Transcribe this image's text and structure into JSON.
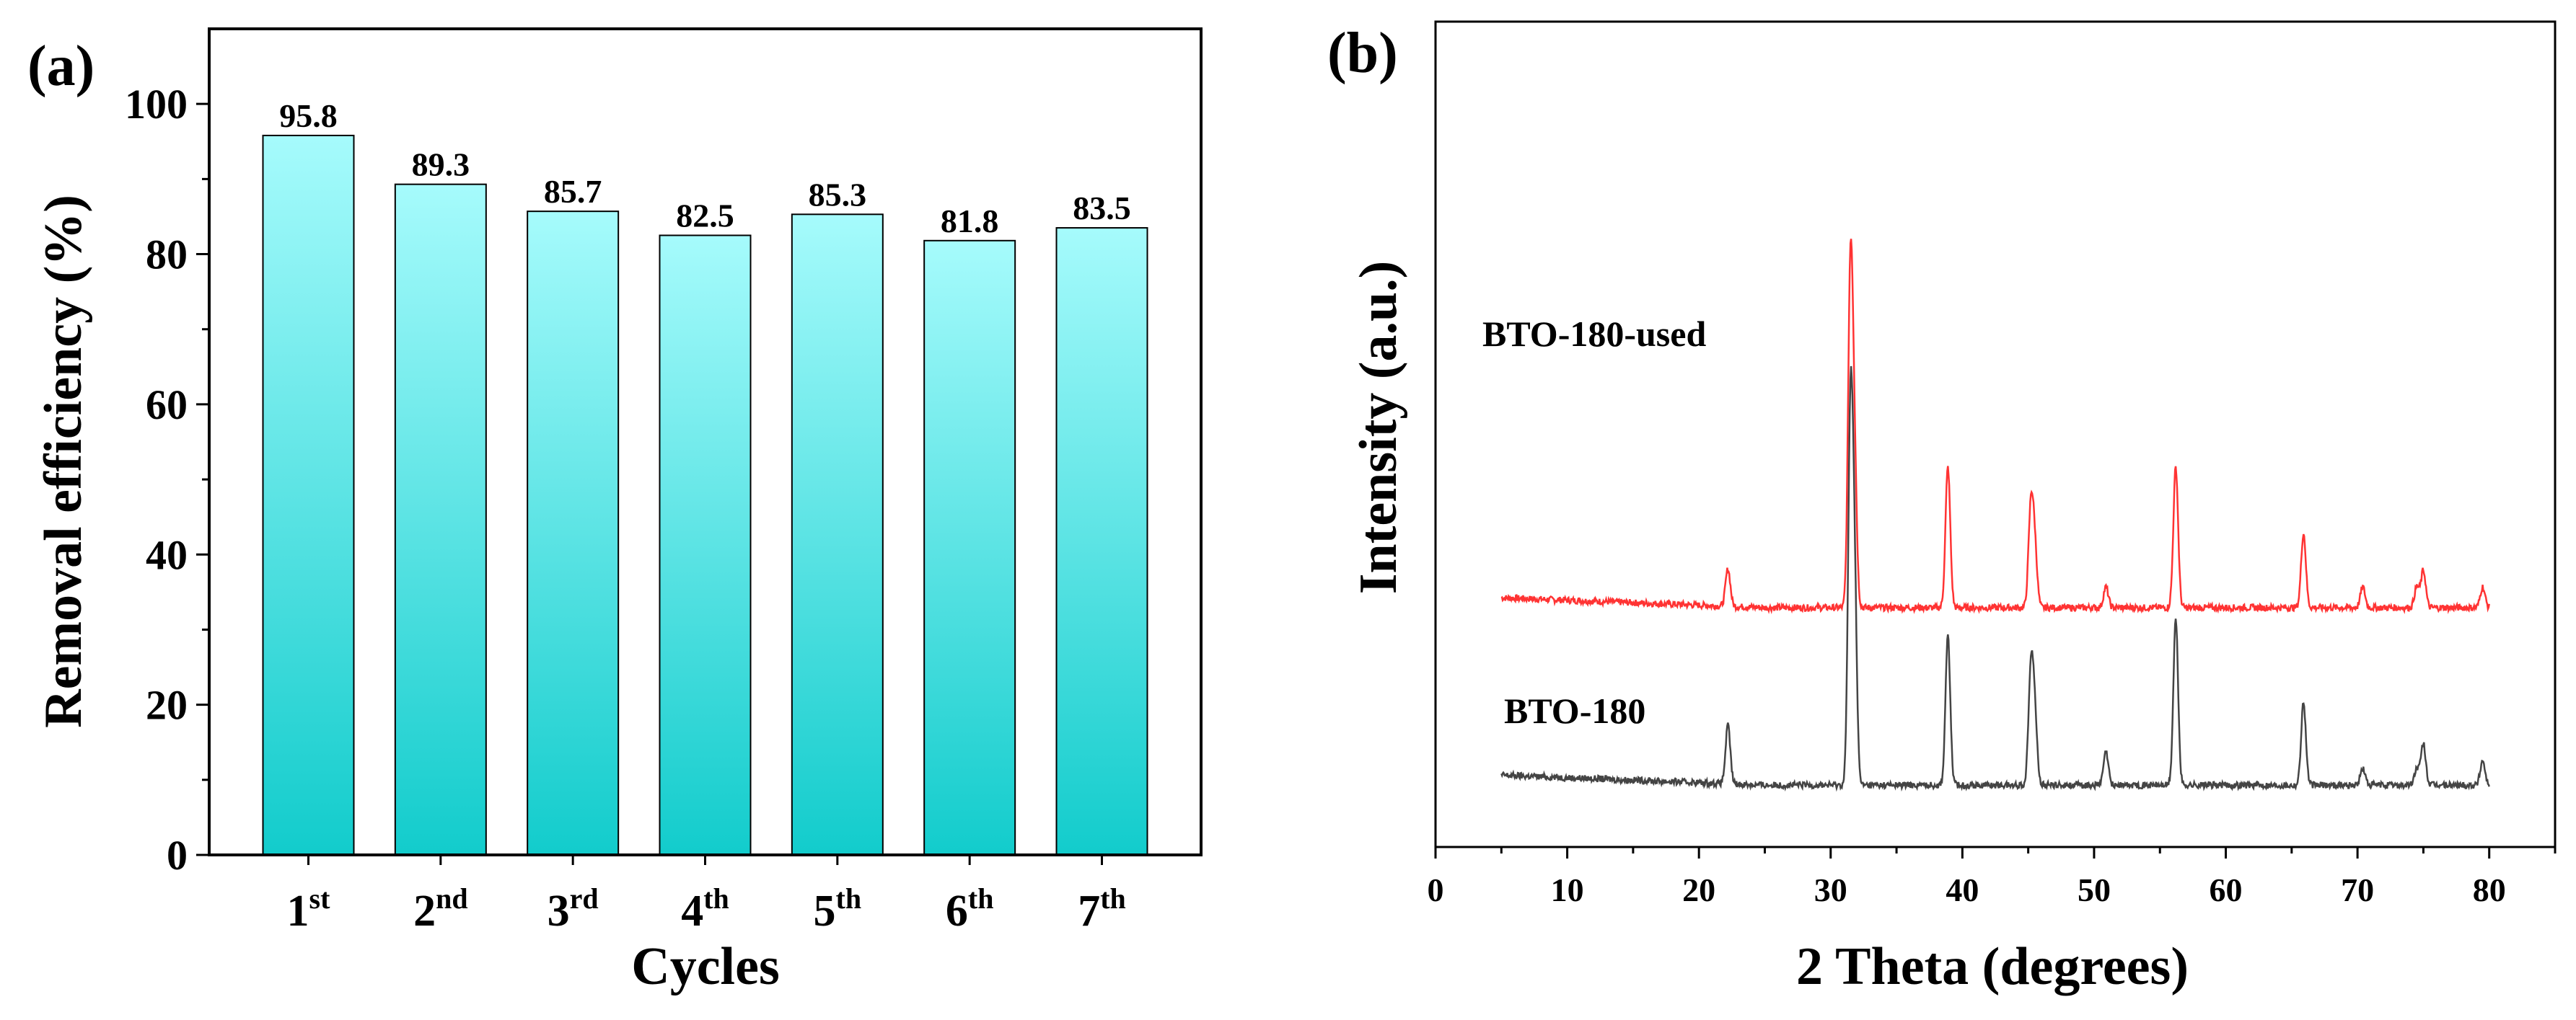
{
  "chart_data": [
    {
      "panel_label": "(a)",
      "type": "bar",
      "categories": [
        {
          "base": "1",
          "sup": "st"
        },
        {
          "base": "2",
          "sup": "nd"
        },
        {
          "base": "3",
          "sup": "rd"
        },
        {
          "base": "4",
          "sup": "th"
        },
        {
          "base": "5",
          "sup": "th"
        },
        {
          "base": "6",
          "sup": "th"
        },
        {
          "base": "7",
          "sup": "th"
        }
      ],
      "values": [
        95.8,
        89.3,
        85.7,
        82.5,
        85.3,
        81.8,
        83.5
      ],
      "data_labels": [
        "95.8",
        "89.3",
        "85.7",
        "82.5",
        "85.3",
        "81.8",
        "83.5"
      ],
      "xlabel": "Cycles",
      "ylabel": "Removal efficiency (%)",
      "ylim": [
        0,
        110
      ],
      "yticks": [
        0,
        20,
        40,
        60,
        80,
        100
      ],
      "grid": false,
      "bar_gradient": {
        "top": "#a6fbfc",
        "bottom": "#12cccc"
      }
    },
    {
      "panel_label": "(b)",
      "type": "line",
      "xlabel": "2 Theta (degrees)",
      "ylabel": "Intensity (a.u.)",
      "xlim": [
        0,
        85
      ],
      "xticks": [
        0,
        10,
        20,
        30,
        40,
        50,
        60,
        70,
        80
      ],
      "y_ticks_shown": false,
      "grid": false,
      "series": [
        {
          "name": "BTO-180-used",
          "color": "#ff3333",
          "x_range": [
            5,
            80
          ],
          "baseline_rel": 0.29,
          "peaks": [
            [
              22.2,
              0.045
            ],
            [
              31.5,
              0.4
            ],
            [
              31.8,
              0.17
            ],
            [
              38.9,
              0.17
            ],
            [
              45.2,
              0.12
            ],
            [
              45.5,
              0.07
            ],
            [
              50.9,
              0.025
            ],
            [
              56.2,
              0.17
            ],
            [
              65.9,
              0.09
            ],
            [
              70.4,
              0.025
            ],
            [
              74.5,
              0.025
            ],
            [
              75.0,
              0.045
            ],
            [
              79.5,
              0.025
            ]
          ]
        },
        {
          "name": "BTO-180",
          "color": "#444444",
          "x_range": [
            5,
            80
          ],
          "baseline_rel": 0.075,
          "peaks": [
            [
              22.2,
              0.07
            ],
            [
              31.5,
              0.43
            ],
            [
              31.8,
              0.24
            ],
            [
              38.9,
              0.18
            ],
            [
              45.2,
              0.14
            ],
            [
              45.5,
              0.08
            ],
            [
              50.9,
              0.04
            ],
            [
              56.2,
              0.2
            ],
            [
              65.9,
              0.1
            ],
            [
              70.4,
              0.02
            ],
            [
              74.5,
              0.02
            ],
            [
              75.0,
              0.05
            ],
            [
              79.5,
              0.03
            ]
          ]
        }
      ]
    }
  ]
}
